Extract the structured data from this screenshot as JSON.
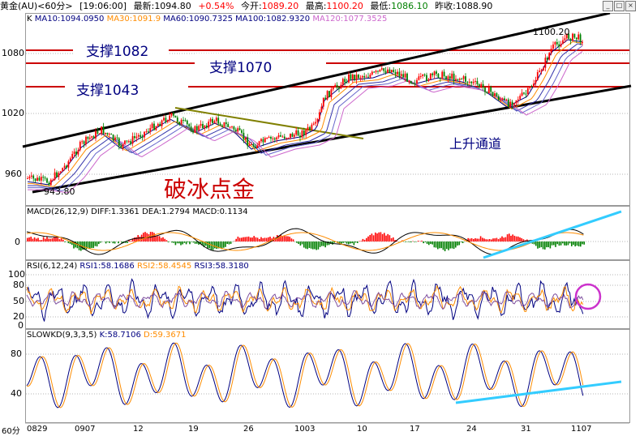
{
  "header": {
    "symbol": "黄金(AU)<60分>",
    "time": "[19:06:00]",
    "last_label": "最新:",
    "last_value": "1094.80",
    "change": "+0.54%",
    "open_label": "今开:",
    "open_value": "1089.20",
    "high_label": "最高:",
    "high_value": "1100.20",
    "low_label": "最低:",
    "low_value": "1086.10",
    "prev_label": "昨收:",
    "prev_value": "1088.90",
    "window_buttons": [
      "min-icon",
      "restore-icon",
      "close-icon"
    ]
  },
  "main_panel": {
    "indicator_prefix": "K",
    "ma": [
      {
        "label": "MA10:1094.0950",
        "color": "#000080"
      },
      {
        "label": "MA30:1091.9",
        "color": "#ff8c00"
      },
      {
        "label": "MA60:1090.7325",
        "color": "#000080"
      },
      {
        "label": "MA100:1082.9320",
        "color": "#000080"
      },
      {
        "label": "MA120:1077.3525",
        "color": "#cc66cc"
      }
    ],
    "y_ticks": [
      "1080",
      "1020",
      "960"
    ],
    "annotations": {
      "support_1082": "支撑1082",
      "support_1070": "支撑1070",
      "support_1043": "支撑1043",
      "channel": "上升通道",
      "title": "破冰点金",
      "high_marker": "1100.20",
      "low_marker": "943.80"
    }
  },
  "macd_panel": {
    "title": "MACD(26,12,9)",
    "diff": "DIFF:1.3361",
    "dea": "DEA:1.2794",
    "macd": "MACD:0.1134",
    "y_ticks": [
      "0"
    ]
  },
  "rsi_panel": {
    "title": "RSI(6,12,24)",
    "rsi1": "RSI1:58.1686",
    "rsi2": "RSI2:58.4545",
    "rsi3": "RSI3:58.3180",
    "y_ticks": [
      "100",
      "80",
      "50",
      "20",
      "0"
    ]
  },
  "kd_panel": {
    "title": "SLOWKD(9,3,3,5)",
    "k": "K:58.7106",
    "d": "D:59.3671",
    "y_ticks": [
      "80",
      "40"
    ]
  },
  "x_axis": {
    "period": "60分",
    "labels": [
      "0829",
      "0907",
      "12",
      "19",
      "26",
      "1003",
      "10",
      "17",
      "24",
      "31",
      "1107"
    ]
  },
  "colors": {
    "up_candle": "#ff0000",
    "down_candle": "#008000",
    "support_line": "#cc0000",
    "trend_line": "#000000",
    "cyan_line": "#33ccff",
    "circle": "#cc33cc"
  }
}
